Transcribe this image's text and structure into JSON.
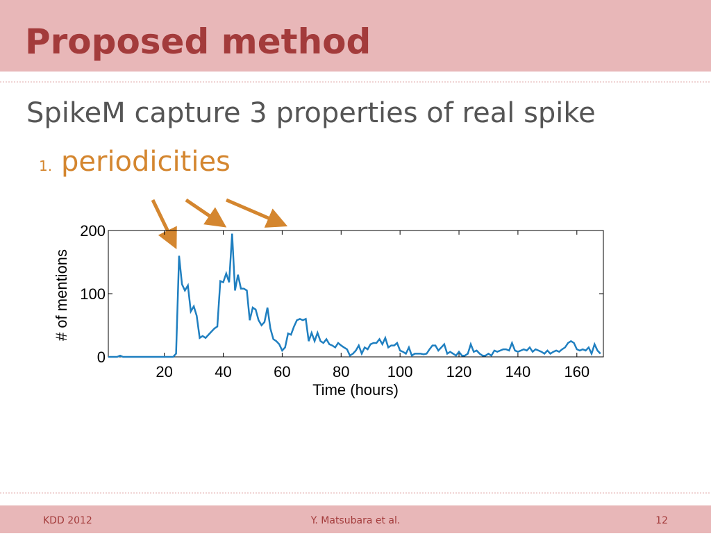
{
  "header": {
    "title": "Proposed method"
  },
  "heading": "SpikeM capture 3 properties of real spike",
  "list": [
    {
      "marker": "1.",
      "text": "periodicities"
    }
  ],
  "chart_data": {
    "type": "line",
    "xlabel": "Time (hours)",
    "ylabel": "# of mentions",
    "xlim": [
      1,
      169
    ],
    "ylim": [
      0,
      200
    ],
    "xticks": [
      20,
      40,
      60,
      80,
      100,
      120,
      140,
      160
    ],
    "yticks": [
      0,
      100,
      200
    ],
    "x": [
      1,
      2,
      3,
      4,
      5,
      6,
      7,
      8,
      9,
      10,
      11,
      12,
      13,
      14,
      15,
      16,
      17,
      18,
      19,
      20,
      21,
      22,
      23,
      24,
      25,
      26,
      27,
      28,
      29,
      30,
      31,
      32,
      33,
      34,
      35,
      36,
      37,
      38,
      39,
      40,
      41,
      42,
      43,
      44,
      45,
      46,
      47,
      48,
      49,
      50,
      51,
      52,
      53,
      54,
      55,
      56,
      57,
      58,
      59,
      60,
      61,
      62,
      63,
      64,
      65,
      66,
      67,
      68,
      69,
      70,
      71,
      72,
      73,
      74,
      75,
      76,
      77,
      78,
      79,
      80,
      81,
      82,
      83,
      84,
      85,
      86,
      87,
      88,
      89,
      90,
      91,
      92,
      93,
      94,
      95,
      96,
      97,
      98,
      99,
      100,
      101,
      102,
      103,
      104,
      105,
      106,
      107,
      108,
      109,
      110,
      111,
      112,
      113,
      114,
      115,
      116,
      117,
      118,
      119,
      120,
      121,
      122,
      123,
      124,
      125,
      126,
      127,
      128,
      129,
      130,
      131,
      132,
      133,
      134,
      135,
      136,
      137,
      138,
      139,
      140,
      141,
      142,
      143,
      144,
      145,
      146,
      147,
      148,
      149,
      150,
      151,
      152,
      153,
      154,
      155,
      156,
      157,
      158,
      159,
      160,
      161,
      162,
      163,
      164,
      165,
      166,
      167,
      168
    ],
    "series": [
      {
        "color": "#1f7fc0",
        "values": [
          0,
          0,
          0,
          0,
          2,
          0,
          0,
          0,
          0,
          0,
          0,
          0,
          0,
          0,
          0,
          0,
          0,
          0,
          0,
          0,
          0,
          0,
          0,
          5,
          160,
          115,
          105,
          113,
          72,
          80,
          65,
          30,
          33,
          30,
          35,
          40,
          45,
          48,
          120,
          118,
          132,
          118,
          195,
          105,
          130,
          108,
          108,
          105,
          58,
          78,
          75,
          58,
          50,
          55,
          78,
          45,
          28,
          25,
          20,
          10,
          15,
          37,
          35,
          48,
          58,
          60,
          58,
          60,
          25,
          38,
          25,
          38,
          25,
          22,
          28,
          20,
          18,
          15,
          22,
          18,
          15,
          12,
          2,
          5,
          10,
          18,
          5,
          15,
          12,
          20,
          22,
          22,
          28,
          20,
          30,
          15,
          18,
          18,
          22,
          10,
          8,
          5,
          15,
          2,
          5,
          5,
          5,
          4,
          5,
          12,
          18,
          18,
          10,
          15,
          20,
          5,
          8,
          5,
          2,
          8,
          2,
          2,
          5,
          20,
          8,
          10,
          5,
          2,
          2,
          5,
          2,
          10,
          8,
          10,
          12,
          12,
          10,
          22,
          10,
          8,
          10,
          12,
          10,
          15,
          8,
          12,
          10,
          8,
          5,
          10,
          5,
          8,
          10,
          8,
          12,
          15,
          22,
          25,
          22,
          12,
          10,
          12,
          10,
          15,
          5,
          20,
          10,
          5
        ]
      }
    ]
  },
  "footer": {
    "left": "KDD 2012",
    "center": "Y. Matsubara et al.",
    "right": "12"
  }
}
